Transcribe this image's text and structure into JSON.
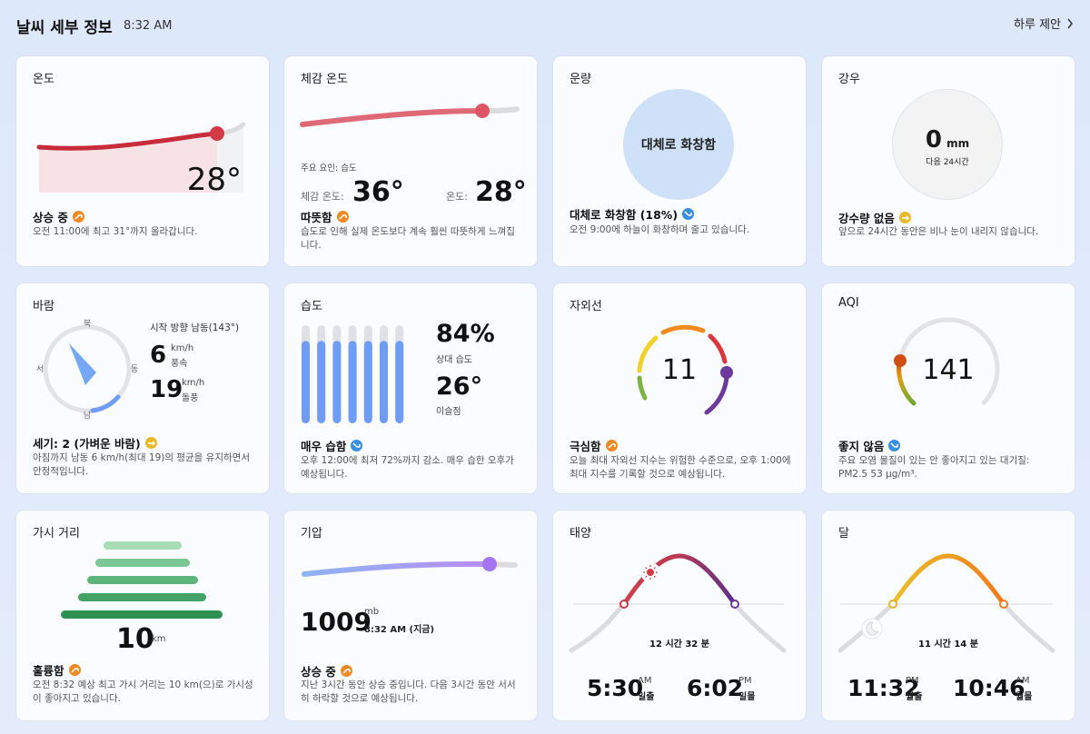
{
  "header": {
    "title": "날씨 세부 정보",
    "time": "8:32 AM",
    "link": "하루 제안"
  },
  "temp": {
    "title": "온도",
    "value": "28°",
    "status": "상승 중",
    "desc": "오전 11:00에 최고 31°까지 올라갑니다."
  },
  "feels": {
    "title": "체감 온도",
    "factor": "주요 요인: 습도",
    "feels_label": "체감 온도:",
    "feels_value": "36°",
    "temp_label": "온도:",
    "temp_value": "28°",
    "status": "따뜻함",
    "desc": "습도로 인해 실제 온도보다 계속 훨씬 따뜻하게 느껴집니다."
  },
  "cloud": {
    "title": "운량",
    "circle_text": "대체로 화창함",
    "status": "대체로 화창함 (18%)",
    "desc": "오전 9:00에 하늘이 화창하며 줄고 있습니다."
  },
  "rain": {
    "title": "강우",
    "value": "0",
    "unit": "mm",
    "sub": "다음 24시간",
    "status": "강수량 없음",
    "desc": "앞으로 24시간 동안은 비나 눈이 내리지 않습니다."
  },
  "wind": {
    "title": "바람",
    "n": "북",
    "s": "남",
    "w": "서",
    "e": "동",
    "direction": "시작 방향 남동(143°)",
    "speed": "6",
    "speed_unit": "km/h",
    "speed_label": "풍속",
    "gust": "19",
    "gust_unit": "km/h",
    "gust_label": "돌풍",
    "status": "세기: 2 (가벼운 바람)",
    "desc": "아침까지 남동 6 km/h(최대 19)의 평균을 유지하면서 안정적입니다."
  },
  "humidity": {
    "title": "습도",
    "value": "84%",
    "value_label": "상대 습도",
    "dew": "26°",
    "dew_label": "이슬점",
    "bars": [
      0.84,
      0.84,
      0.84,
      0.84,
      0.84,
      0.84,
      0.84
    ],
    "status": "매우 습함",
    "desc": "오후 12:00에 최저 72%까지 감소. 매우 습한 오후가 예상됩니다."
  },
  "uv": {
    "title": "자외선",
    "value": "11",
    "status": "극심함",
    "desc": "오늘 최대 자외선 지수는 위험한 수준으로, 오후 1:00에 최대 지수를 기록할 것으로 예상됩니다."
  },
  "aqi": {
    "title": "AQI",
    "value": "141",
    "status": "좋지 않음",
    "desc": "주요 오염 물질이 있는 안 좋아지고 있는 대기질: PM2.5 53 μg/m³."
  },
  "visibility": {
    "title": "가시 거리",
    "value": "10",
    "unit": "km",
    "status": "훌륭함",
    "desc": "오전 8:32 예상 최고 가시 거리는 10 km(으)로 가시성이 좋아지고 있습니다."
  },
  "pressure": {
    "title": "기압",
    "value": "1009",
    "unit": "mb",
    "time": "8:32 AM (지금)",
    "status": "상승 중",
    "desc": "지난 3시간 동안 상승 중입니다. 다음 3시간 동안 서서히 하락할 것으로 예상됩니다."
  },
  "sun": {
    "title": "태양",
    "duration": "12 시간 32 분",
    "rise": "5:30",
    "rise_ampm": "AM",
    "rise_label": "일출",
    "set": "6:02",
    "set_ampm": "PM",
    "set_label": "일몰"
  },
  "moon": {
    "title": "달",
    "duration": "11 시간 14 분",
    "rise": "11:32",
    "rise_ampm": "PM",
    "rise_label": "월출",
    "set": "10:46",
    "set_ampm": "AM",
    "set_label": "월몰"
  },
  "colors": {
    "accent_up": "#f08a24",
    "accent_down": "#3b8fe0",
    "temp_red": "#d23a46",
    "humid_blue": "#6f9cf4"
  }
}
